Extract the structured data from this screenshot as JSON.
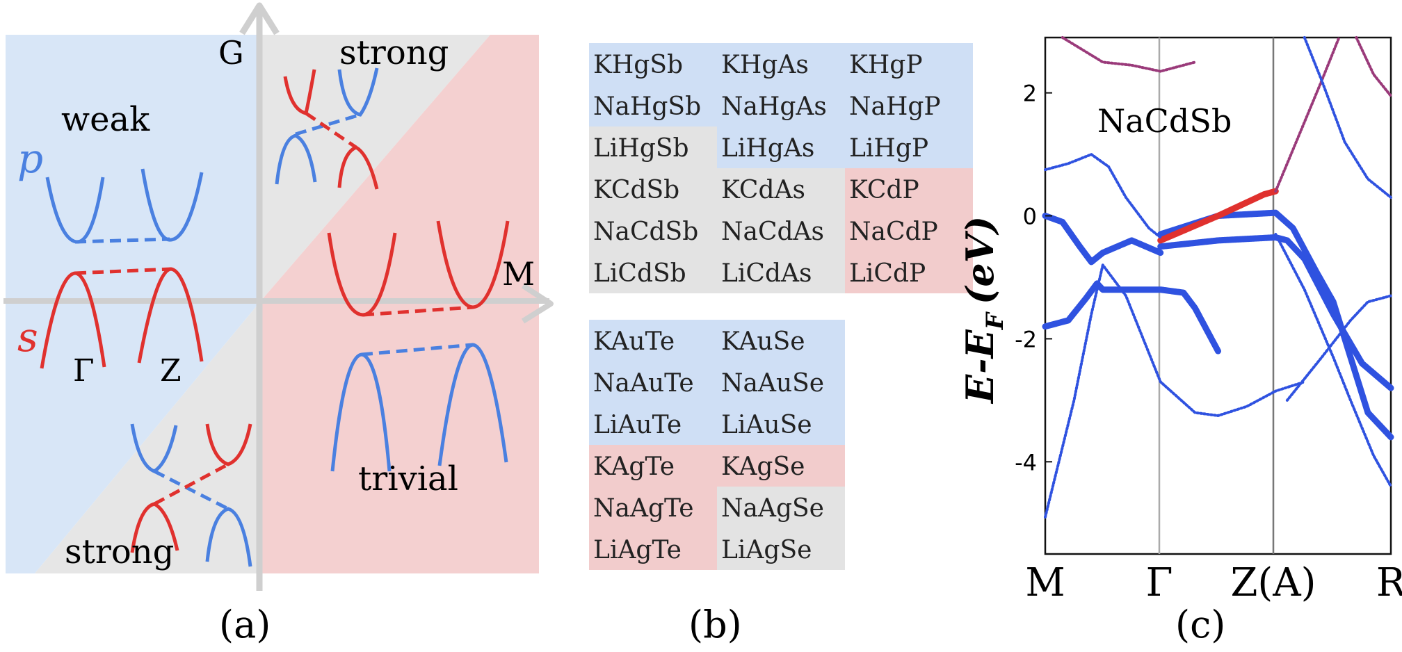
{
  "panel_a": {
    "caption": "(a)",
    "axis_g": "G",
    "axis_m": "M",
    "label_weak": "weak",
    "label_strong_top": "strong",
    "label_strong_bottom": "strong",
    "label_trivial": "trivial",
    "label_p": "p",
    "label_s": "s",
    "label_gamma": "Γ",
    "label_z": "Z",
    "colors": {
      "weak_bg": "#d8e6f7",
      "strong_bg": "#e6e6e6",
      "trivial_bg": "#f4d0d0",
      "p_band": "#4a80e0",
      "s_band": "#e0312e",
      "axis": "#cfcfcf"
    }
  },
  "panel_b": {
    "caption": "(b)",
    "table1": [
      [
        {
          "t": "KHgSb",
          "c": "blue"
        },
        {
          "t": "KHgAs",
          "c": "blue"
        },
        {
          "t": "KHgP",
          "c": "blue"
        }
      ],
      [
        {
          "t": "NaHgSb",
          "c": "blue"
        },
        {
          "t": "NaHgAs",
          "c": "blue"
        },
        {
          "t": "NaHgP",
          "c": "blue"
        }
      ],
      [
        {
          "t": "LiHgSb",
          "c": "gray"
        },
        {
          "t": "LiHgAs",
          "c": "blue"
        },
        {
          "t": "LiHgP",
          "c": "blue"
        }
      ],
      [
        {
          "t": "KCdSb",
          "c": "gray"
        },
        {
          "t": "KCdAs",
          "c": "gray"
        },
        {
          "t": "KCdP",
          "c": "red"
        }
      ],
      [
        {
          "t": "NaCdSb",
          "c": "gray"
        },
        {
          "t": "NaCdAs",
          "c": "gray"
        },
        {
          "t": "NaCdP",
          "c": "red"
        }
      ],
      [
        {
          "t": "LiCdSb",
          "c": "gray"
        },
        {
          "t": "LiCdAs",
          "c": "gray"
        },
        {
          "t": "LiCdP",
          "c": "red"
        }
      ]
    ],
    "table2": [
      [
        {
          "t": "KAuTe",
          "c": "blue"
        },
        {
          "t": "KAuSe",
          "c": "blue"
        }
      ],
      [
        {
          "t": "NaAuTe",
          "c": "blue"
        },
        {
          "t": "NaAuSe",
          "c": "blue"
        }
      ],
      [
        {
          "t": "LiAuTe",
          "c": "blue"
        },
        {
          "t": "LiAuSe",
          "c": "blue"
        }
      ],
      [
        {
          "t": "KAgTe",
          "c": "red"
        },
        {
          "t": "KAgSe",
          "c": "red"
        }
      ],
      [
        {
          "t": "NaAgTe",
          "c": "red"
        },
        {
          "t": "NaAgSe",
          "c": "gray"
        }
      ],
      [
        {
          "t": "LiAgTe",
          "c": "red"
        },
        {
          "t": "LiAgSe",
          "c": "gray"
        }
      ]
    ],
    "colors": {
      "blue": "#cfdff5",
      "gray": "#e3e3e3",
      "red": "#f2cccc"
    }
  },
  "panel_c": {
    "caption": "(c)",
    "ylabel": "E-E",
    "ylabel_sub": "F",
    "ylabel_unit": "(eV)",
    "yticks": [
      "2",
      "0",
      "-2",
      "-4"
    ],
    "xticks": [
      "M",
      "Γ",
      "Z(A)",
      "R"
    ],
    "material": "NaCdSb"
  },
  "chart_data": {
    "type": "line",
    "title": "NaCdSb",
    "xlabel": "",
    "ylabel": "E-E_F (eV)",
    "ylim": [
      -5.5,
      2.9
    ],
    "xticks": [
      "M",
      "Γ",
      "Z(A)",
      "R"
    ],
    "series": [
      {
        "points": [
          [
            0,
            -4.9
          ],
          [
            0.5,
            -3.0
          ],
          [
            0.8,
            -1.6
          ],
          [
            1,
            -0.8
          ],
          [
            1.4,
            -1.3
          ],
          [
            2,
            -2.7
          ],
          [
            2.6,
            -3.2
          ],
          [
            3,
            -3.25
          ],
          [
            3.5,
            -3.1
          ],
          [
            4,
            -2.85
          ],
          [
            4.5,
            -2.7
          ]
        ]
      },
      {
        "points": [
          [
            0,
            -1.8
          ],
          [
            0.4,
            -1.7
          ],
          [
            0.7,
            -1.35
          ],
          [
            0.9,
            -1.1
          ],
          [
            1,
            -1.2
          ],
          [
            1.5,
            -1.2
          ],
          [
            2.0,
            -1.2
          ],
          [
            2.4,
            -1.25
          ],
          [
            2.6,
            -1.5
          ],
          [
            3,
            -2.2
          ]
        ]
      },
      {
        "points": [
          [
            0,
            0.0
          ],
          [
            0.3,
            -0.1
          ],
          [
            0.6,
            -0.5
          ],
          [
            0.8,
            -0.75
          ],
          [
            1.0,
            -0.6
          ],
          [
            1.5,
            -0.4
          ],
          [
            2,
            -0.6
          ]
        ]
      },
      {
        "points": [
          [
            2,
            -0.5
          ],
          [
            3,
            -0.4
          ],
          [
            4,
            -0.35
          ],
          [
            4.2,
            -0.4
          ],
          [
            4.5,
            -0.7
          ],
          [
            5,
            -1.6
          ],
          [
            5.5,
            -2.4
          ],
          [
            6,
            -2.8
          ]
        ]
      },
      {
        "points": [
          [
            2,
            -0.3
          ],
          [
            3,
            0.0
          ],
          [
            4,
            0.05
          ],
          [
            4.3,
            -0.2
          ],
          [
            4.7,
            -0.9
          ],
          [
            5,
            -1.4
          ],
          [
            5.3,
            -2.3
          ],
          [
            5.6,
            -3.2
          ],
          [
            6,
            -3.6
          ]
        ]
      },
      {
        "points": [
          [
            4,
            -0.3
          ],
          [
            4.5,
            -1.2
          ],
          [
            5,
            -2.3
          ],
          [
            5.3,
            -3.0
          ],
          [
            5.7,
            -3.9
          ],
          [
            6,
            -4.4
          ]
        ]
      },
      {
        "points": [
          [
            2,
            -0.4
          ],
          [
            3,
            0.0
          ],
          [
            3.8,
            0.35
          ],
          [
            4,
            0.4
          ]
        ]
      },
      {
        "points": [
          [
            0,
            0.75
          ],
          [
            0.4,
            0.85
          ],
          [
            0.8,
            1.0
          ],
          [
            1.1,
            0.8
          ],
          [
            1.4,
            0.3
          ],
          [
            1.8,
            -0.2
          ],
          [
            2,
            -0.35
          ]
        ]
      },
      {
        "points": [
          [
            0.3,
            2.9
          ],
          [
            1,
            2.5
          ],
          [
            1.5,
            2.45
          ],
          [
            2,
            2.35
          ],
          [
            2.6,
            2.5
          ]
        ]
      },
      {
        "points": [
          [
            4,
            0.4
          ],
          [
            4.4,
            1.3
          ],
          [
            4.8,
            2.2
          ],
          [
            5.1,
            2.9
          ]
        ]
      },
      {
        "points": [
          [
            4.5,
            2.9
          ],
          [
            4.8,
            2.2
          ],
          [
            5.2,
            1.2
          ],
          [
            5.6,
            0.6
          ],
          [
            6,
            0.3
          ]
        ]
      },
      {
        "points": [
          [
            5.4,
            2.9
          ],
          [
            5.7,
            2.3
          ],
          [
            6,
            1.95
          ]
        ]
      },
      {
        "points": [
          [
            4.2,
            -3.0
          ],
          [
            4.8,
            -2.3
          ],
          [
            5.3,
            -1.7
          ],
          [
            5.6,
            -1.4
          ],
          [
            6,
            -1.3
          ]
        ]
      }
    ]
  }
}
